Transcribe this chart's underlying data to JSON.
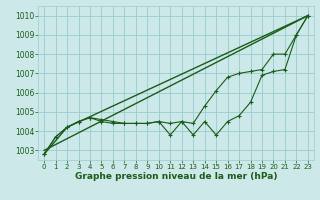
{
  "background_color": "#cce8e8",
  "grid_color": "#99cccc",
  "line_color": "#1a5c1a",
  "xlabel": "Graphe pression niveau de la mer (hPa)",
  "xlabel_fontsize": 6.5,
  "ylim": [
    1002.5,
    1010.5
  ],
  "xlim": [
    -0.5,
    23.5
  ],
  "yticks": [
    1003,
    1004,
    1005,
    1006,
    1007,
    1008,
    1009,
    1010
  ],
  "xticks": [
    0,
    1,
    2,
    3,
    4,
    5,
    6,
    7,
    8,
    9,
    10,
    11,
    12,
    13,
    14,
    15,
    16,
    17,
    18,
    19,
    20,
    21,
    22,
    23
  ],
  "series": [
    {
      "x": [
        0,
        1,
        2,
        3,
        4,
        5,
        6,
        7,
        8,
        9,
        10,
        11,
        12,
        13,
        14,
        15,
        16,
        17,
        18,
        19,
        20,
        21,
        22,
        23
      ],
      "y": [
        1002.8,
        1003.7,
        1004.2,
        1004.5,
        1004.7,
        1004.5,
        1004.4,
        1004.4,
        1004.4,
        1004.4,
        1004.5,
        1003.8,
        1004.5,
        1003.8,
        1004.5,
        1003.8,
        1004.5,
        1004.8,
        1005.5,
        1006.9,
        1007.1,
        1007.2,
        1009.0,
        1010.0
      ],
      "marker": "+",
      "markersize": 3.5,
      "linewidth": 0.8
    },
    {
      "x": [
        0,
        1,
        2,
        3,
        4,
        5,
        6,
        7,
        8,
        9,
        10,
        11,
        12,
        13,
        14,
        15,
        16,
        17,
        18,
        19,
        20,
        21,
        22,
        23
      ],
      "y": [
        1002.8,
        1003.7,
        1004.2,
        1004.5,
        1004.7,
        1004.6,
        1004.5,
        1004.4,
        1004.4,
        1004.4,
        1004.5,
        1004.4,
        1004.5,
        1004.4,
        1005.3,
        1006.1,
        1006.8,
        1007.0,
        1007.1,
        1007.2,
        1008.0,
        1008.0,
        1009.0,
        1010.0
      ],
      "marker": "+",
      "markersize": 3.5,
      "linewidth": 0.8
    },
    {
      "x": [
        0,
        23
      ],
      "y": [
        1003.0,
        1010.0
      ],
      "marker": null,
      "linewidth": 1.0
    },
    {
      "x": [
        0,
        2,
        23
      ],
      "y": [
        1002.8,
        1004.2,
        1010.0
      ],
      "marker": null,
      "linewidth": 1.0
    }
  ]
}
